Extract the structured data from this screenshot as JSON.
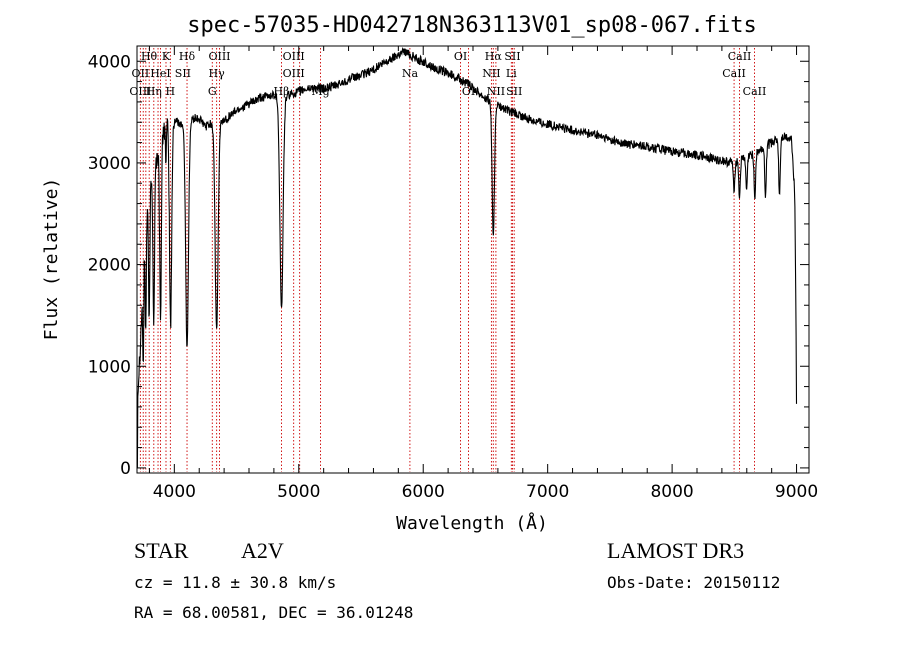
{
  "chart_data": {
    "type": "line",
    "title": "spec-57035-HD042718N363113V01_sp08-067.fits",
    "xlabel": "Wavelength (Å)",
    "ylabel": "Flux (relative)",
    "xlim": [
      3700,
      9100
    ],
    "ylim": [
      -50,
      4150
    ],
    "x_ticks": [
      4000,
      5000,
      6000,
      7000,
      8000,
      9000
    ],
    "x_tick_labels": [
      "4000",
      "5000",
      "6000",
      "7000",
      "8000",
      "9000"
    ],
    "y_ticks": [
      0,
      1000,
      2000,
      3000,
      4000
    ],
    "y_tick_labels": [
      "0",
      "1000",
      "2000",
      "3000",
      "4000"
    ],
    "series": [
      {
        "name": "flux",
        "color": "#000000",
        "continuum": [
          [
            3700,
            0
          ],
          [
            3705,
            700
          ],
          [
            3715,
            950
          ],
          [
            3730,
            1300
          ],
          [
            3750,
            1900
          ],
          [
            3770,
            2400
          ],
          [
            3800,
            2700
          ],
          [
            3830,
            2900
          ],
          [
            3870,
            3100
          ],
          [
            3900,
            3300
          ],
          [
            3950,
            3380
          ],
          [
            4000,
            3420
          ],
          [
            4050,
            3390
          ],
          [
            4100,
            3330
          ],
          [
            4150,
            3440
          ],
          [
            4200,
            3430
          ],
          [
            4250,
            3360
          ],
          [
            4300,
            3390
          ],
          [
            4400,
            3420
          ],
          [
            4500,
            3520
          ],
          [
            4600,
            3580
          ],
          [
            4700,
            3640
          ],
          [
            4800,
            3670
          ],
          [
            4900,
            3660
          ],
          [
            5000,
            3700
          ],
          [
            5100,
            3740
          ],
          [
            5200,
            3730
          ],
          [
            5300,
            3760
          ],
          [
            5400,
            3820
          ],
          [
            5500,
            3860
          ],
          [
            5600,
            3920
          ],
          [
            5700,
            3990
          ],
          [
            5800,
            4070
          ],
          [
            5850,
            4100
          ],
          [
            5900,
            4060
          ],
          [
            6000,
            3990
          ],
          [
            6100,
            3930
          ],
          [
            6200,
            3880
          ],
          [
            6300,
            3820
          ],
          [
            6400,
            3740
          ],
          [
            6500,
            3640
          ],
          [
            6600,
            3560
          ],
          [
            6700,
            3500
          ],
          [
            6800,
            3450
          ],
          [
            7000,
            3380
          ],
          [
            7200,
            3320
          ],
          [
            7400,
            3270
          ],
          [
            7600,
            3190
          ],
          [
            7800,
            3160
          ],
          [
            8000,
            3110
          ],
          [
            8200,
            3080
          ],
          [
            8400,
            3020
          ],
          [
            8500,
            3000
          ],
          [
            8600,
            3060
          ],
          [
            8700,
            3120
          ],
          [
            8800,
            3200
          ],
          [
            8900,
            3260
          ],
          [
            8960,
            3230
          ],
          [
            8985,
            2700
          ],
          [
            8995,
            1500
          ],
          [
            9000,
            500
          ]
        ],
        "absorption_lines": [
          {
            "x": 3750,
            "depth": 900,
            "width": 4
          },
          {
            "x": 3770,
            "depth": 1100,
            "width": 4
          },
          {
            "x": 3798,
            "depth": 1300,
            "width": 5
          },
          {
            "x": 3835,
            "depth": 1500,
            "width": 6
          },
          {
            "x": 3889,
            "depth": 1700,
            "width": 7
          },
          {
            "x": 3933,
            "depth": 400,
            "width": 3
          },
          {
            "x": 3970,
            "depth": 2000,
            "width": 9
          },
          {
            "x": 4102,
            "depth": 2150,
            "width": 11
          },
          {
            "x": 4340,
            "depth": 2050,
            "width": 12
          },
          {
            "x": 4861,
            "depth": 2100,
            "width": 13
          },
          {
            "x": 6563,
            "depth": 1350,
            "width": 9
          },
          {
            "x": 8498,
            "depth": 250,
            "width": 6
          },
          {
            "x": 8542,
            "depth": 350,
            "width": 6
          },
          {
            "x": 8598,
            "depth": 330,
            "width": 6
          },
          {
            "x": 8665,
            "depth": 450,
            "width": 6
          },
          {
            "x": 8750,
            "depth": 520,
            "width": 6
          },
          {
            "x": 8863,
            "depth": 560,
            "width": 6
          }
        ],
        "noise_amplitude": 45
      }
    ],
    "line_markers": {
      "color": "#cc0000",
      "style": "dotted",
      "wavelengths": [
        3727,
        3750,
        3771,
        3798,
        3835,
        3869,
        3889,
        3933,
        3968,
        4102,
        4305,
        4340,
        4363,
        4861,
        4959,
        5007,
        5175,
        5893,
        6300,
        6364,
        6548,
        6563,
        6584,
        6708,
        6717,
        6731,
        8498,
        8542,
        8662
      ],
      "labels": [
        {
          "text": "Hθ",
          "x": 3797,
          "row": 0
        },
        {
          "text": "K",
          "x": 3933,
          "row": 0
        },
        {
          "text": "Hδ",
          "x": 4102,
          "row": 0
        },
        {
          "text": "OIII",
          "x": 4363,
          "row": 0
        },
        {
          "text": "OIII",
          "x": 4959,
          "row": 0
        },
        {
          "text": "OI",
          "x": 6300,
          "row": 0
        },
        {
          "text": "Hα",
          "x": 6563,
          "row": 0
        },
        {
          "text": "SII",
          "x": 6717,
          "row": 0
        },
        {
          "text": "CaII",
          "x": 8542,
          "row": 0
        },
        {
          "text": "OII",
          "x": 3727,
          "row": 1
        },
        {
          "text": "HeI",
          "x": 3889,
          "row": 1
        },
        {
          "text": "SII",
          "x": 4069,
          "row": 1
        },
        {
          "text": "Hγ",
          "x": 4340,
          "row": 1
        },
        {
          "text": "OIII",
          "x": 4959,
          "row": 1
        },
        {
          "text": "Na",
          "x": 5893,
          "row": 1
        },
        {
          "text": "NII",
          "x": 6548,
          "row": 1
        },
        {
          "text": "Li",
          "x": 6708,
          "row": 1
        },
        {
          "text": "CaII",
          "x": 8498,
          "row": 1
        },
        {
          "text": "OIII",
          "x": 3727,
          "row": 2
        },
        {
          "text": "Hη",
          "x": 3835,
          "row": 2
        },
        {
          "text": "H",
          "x": 3968,
          "row": 2
        },
        {
          "text": "G",
          "x": 4305,
          "row": 2
        },
        {
          "text": "Hβ",
          "x": 4861,
          "row": 2
        },
        {
          "text": "Mg",
          "x": 5175,
          "row": 2
        },
        {
          "text": "OI",
          "x": 6364,
          "row": 2
        },
        {
          "text": "NII",
          "x": 6584,
          "row": 2
        },
        {
          "text": "SII",
          "x": 6731,
          "row": 2
        },
        {
          "text": "CaII",
          "x": 8662,
          "row": 2
        }
      ]
    }
  },
  "info": {
    "object_class": "STAR",
    "subclass": "A2V",
    "survey": "LAMOST DR3",
    "redshift": "cz = 11.8 ± 30.8 km/s",
    "obs_date": "Obs-Date: 20150112",
    "coords": "RA =  68.00581, DEC =  36.01248"
  }
}
